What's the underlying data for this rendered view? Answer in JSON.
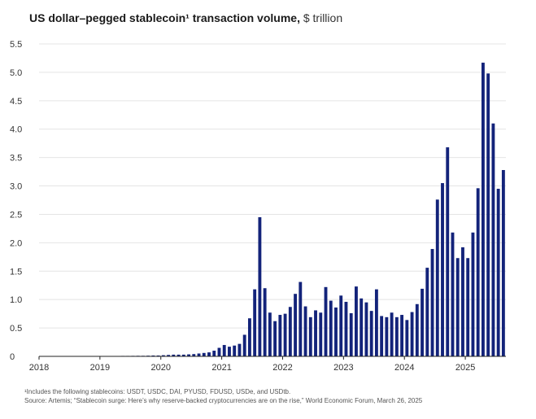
{
  "title": {
    "main": "US dollar–pegged stablecoin¹ transaction volume,",
    "unit": "$ trillion"
  },
  "colors": {
    "bar": "#13237a",
    "grid": "#e4e4e4",
    "axis": "#222222"
  },
  "chart_data": {
    "type": "bar",
    "title": "US dollar–pegged stablecoin¹ transaction volume, $ trillion",
    "xlabel": "",
    "ylabel": "$ trillion",
    "ylim": [
      0,
      5.5
    ],
    "yticks": [
      "0",
      "0.5",
      "1.0",
      "1.5",
      "2.0",
      "2.5",
      "3.0",
      "3.5",
      "4.0",
      "4.5",
      "5.0",
      "5.5"
    ],
    "xticks": [
      "2018",
      "2019",
      "2020",
      "2021",
      "2022",
      "2023",
      "2024",
      "2025"
    ],
    "start": "2018-01",
    "frequency": "monthly",
    "values": [
      0.001,
      0.001,
      0.001,
      0.001,
      0.001,
      0.001,
      0.001,
      0.001,
      0.002,
      0.002,
      0.002,
      0.003,
      0.004,
      0.004,
      0.005,
      0.006,
      0.008,
      0.008,
      0.009,
      0.01,
      0.01,
      0.012,
      0.015,
      0.015,
      0.02,
      0.025,
      0.03,
      0.03,
      0.03,
      0.035,
      0.04,
      0.05,
      0.06,
      0.07,
      0.1,
      0.15,
      0.2,
      0.17,
      0.19,
      0.22,
      0.38,
      0.67,
      1.18,
      2.45,
      1.2,
      0.77,
      0.62,
      0.73,
      0.75,
      0.87,
      1.1,
      1.31,
      0.88,
      0.69,
      0.81,
      0.77,
      1.22,
      0.98,
      0.86,
      1.07,
      0.96,
      0.76,
      1.23,
      1.02,
      0.95,
      0.8,
      1.18,
      0.71,
      0.69,
      0.77,
      0.69,
      0.73,
      0.64,
      0.78,
      0.92,
      1.19,
      1.56,
      1.89,
      2.76,
      3.05,
      3.68,
      2.18,
      1.73,
      1.92,
      1.73,
      2.18,
      2.96,
      5.17,
      4.98,
      4.1,
      2.95,
      3.28
    ]
  },
  "footnotes": {
    "note": "¹Includes the following stablecoins: USDT, USDC, DAI, PYUSD, FDUSD, USDe, and USDtb.",
    "source": "Source: Artemis; “Stablecoin surge: Here’s why reserve-backed cryptocurrencies are on the rise,” World Economic Forum, March 26, 2025"
  }
}
